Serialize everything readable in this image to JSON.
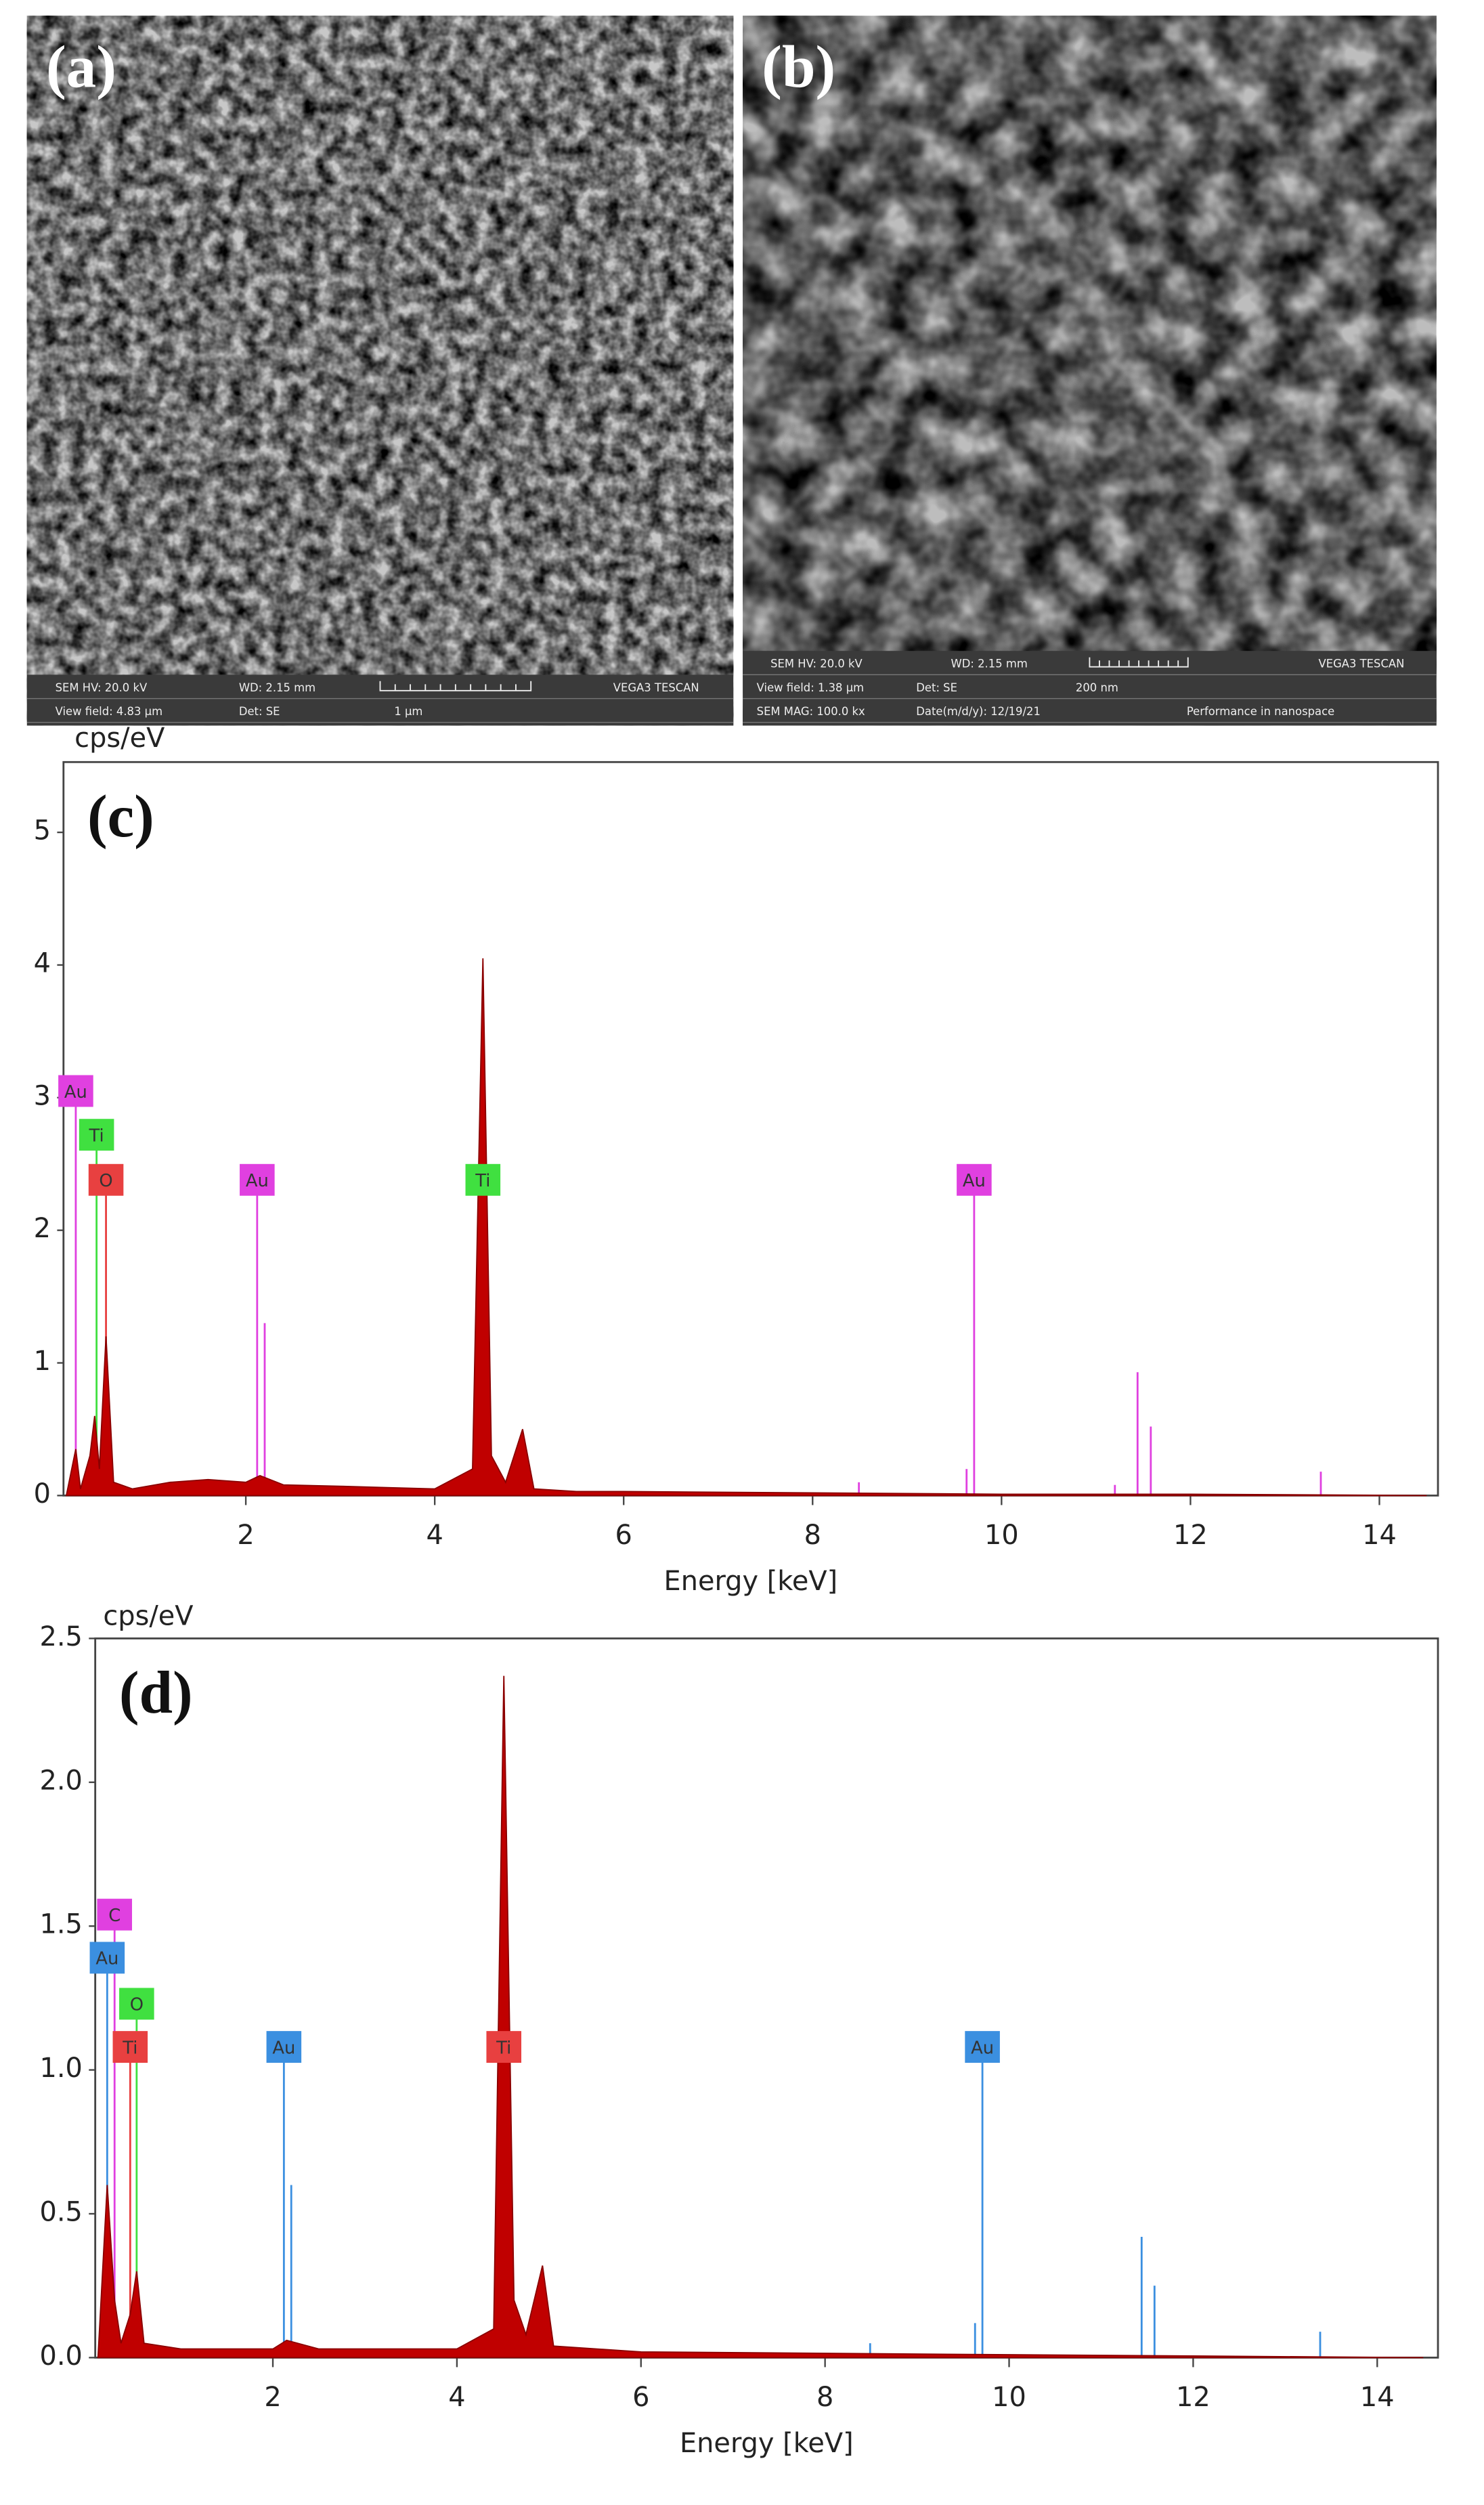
{
  "sem_panels": [
    {
      "label": "(a)",
      "info": [
        [
          "SEM HV: 20.0 kV",
          "WD: 2.15 mm",
          "VEGA3 TESCAN"
        ],
        [
          "View field: 4.83 µm",
          "Det: SE",
          "1 µm"
        ]
      ]
    },
    {
      "label": "(b)",
      "info": [
        [
          "SEM HV: 20.0 kV",
          "WD: 2.15 mm",
          "VEGA3 TESCAN"
        ],
        [
          "View field: 1.38 µm",
          "Det: SE",
          "200 nm"
        ],
        [
          "SEM MAG: 100.0 kx",
          "Date(m/d/y): 12/19/21",
          "Performance in nanospace"
        ]
      ]
    }
  ],
  "chart_data": [
    {
      "type": "area",
      "label": "(c)",
      "y_label": "cps/eV",
      "x_label": "Energy [keV]",
      "color": "#c00000",
      "x": [
        0.1,
        0.2,
        0.25,
        0.35,
        0.4,
        0.45,
        0.52,
        0.6,
        0.8,
        1.2,
        1.6,
        2.0,
        2.15,
        2.4,
        3.0,
        3.5,
        4.0,
        4.4,
        4.51,
        4.6,
        4.75,
        4.93,
        5.05,
        5.5,
        6,
        8,
        10,
        12,
        14.5
      ],
      "values": [
        0,
        0.35,
        0.05,
        0.3,
        0.6,
        0.2,
        1.2,
        0.1,
        0.05,
        0.1,
        0.12,
        0.1,
        0.15,
        0.08,
        0.07,
        0.06,
        0.05,
        0.2,
        4.05,
        0.3,
        0.1,
        0.5,
        0.05,
        0.03,
        0.03,
        0.02,
        0.01,
        0.01,
        0
      ],
      "xlim": [
        0.07,
        14.62
      ],
      "ylim": [
        0,
        5.53
      ],
      "xticks": [
        2,
        4,
        6,
        8,
        10,
        12,
        14
      ],
      "yticks": [
        0,
        1,
        2,
        3,
        4,
        5
      ],
      "markers": [
        {
          "label": "Au",
          "color": "#e040e0",
          "x": 0.2,
          "y": 3.05
        },
        {
          "label": "Ti",
          "color": "#40e040",
          "x": 0.42,
          "y": 2.72
        },
        {
          "label": "O",
          "color": "#e84040",
          "x": 0.52,
          "y": 2.38
        },
        {
          "label": "Au",
          "color": "#e040e0",
          "x": 2.12,
          "y": 2.38
        },
        {
          "label": "Ti",
          "color": "#40e040",
          "x": 4.51,
          "y": 2.38
        },
        {
          "label": "Au",
          "color": "#e040e0",
          "x": 9.71,
          "y": 2.38
        }
      ],
      "lines": {
        "color": "#e040e0",
        "x": [
          2.2,
          8.49,
          9.63,
          11.2,
          11.44,
          11.58,
          13.38
        ],
        "values": [
          1.3,
          0.1,
          0.2,
          0.08,
          0.93,
          0.52,
          0.18
        ]
      }
    },
    {
      "type": "area",
      "label": "(d)",
      "y_label": "cps/eV",
      "x_label": "Energy [keV]",
      "color": "#c00000",
      "x": [
        0.1,
        0.2,
        0.28,
        0.35,
        0.45,
        0.52,
        0.6,
        1,
        2,
        2.15,
        2.5,
        4,
        4.4,
        4.51,
        4.62,
        4.75,
        4.93,
        5.05,
        6,
        10,
        14.5
      ],
      "values": [
        0,
        0.6,
        0.2,
        0.05,
        0.15,
        0.3,
        0.05,
        0.03,
        0.03,
        0.06,
        0.03,
        0.03,
        0.1,
        2.37,
        0.2,
        0.08,
        0.32,
        0.04,
        0.02,
        0.01,
        0
      ],
      "xlim": [
        0.07,
        14.66
      ],
      "ylim": [
        0,
        2.5
      ],
      "xticks": [
        2,
        4,
        6,
        8,
        10,
        12,
        14
      ],
      "yticks": [
        {
          "value": 0,
          "label": "0.0"
        },
        0.5,
        {
          "value": 1,
          "label": "1.0"
        },
        1.5,
        {
          "value": 2,
          "label": "2.0"
        },
        2.5
      ],
      "markers": [
        {
          "label": "C",
          "color": "#e040e0",
          "x": 0.28,
          "y": 1.54
        },
        {
          "label": "Au",
          "color": "#3b8fe0",
          "x": 0.2,
          "y": 1.39
        },
        {
          "label": "O",
          "color": "#40e040",
          "x": 0.52,
          "y": 1.23
        },
        {
          "label": "Ti",
          "color": "#e84040",
          "x": 0.45,
          "y": 1.08
        },
        {
          "label": "Au",
          "color": "#3b8fe0",
          "x": 2.12,
          "y": 1.08
        },
        {
          "label": "Ti",
          "color": "#e84040",
          "x": 4.51,
          "y": 1.08
        },
        {
          "label": "Au",
          "color": "#3b8fe0",
          "x": 9.71,
          "y": 1.08
        }
      ],
      "lines": {
        "color": "#3b8fe0",
        "x": [
          2.2,
          8.49,
          9.63,
          11.44,
          11.58,
          13.38
        ],
        "values": [
          0.6,
          0.05,
          0.12,
          0.42,
          0.25,
          0.09
        ]
      }
    }
  ]
}
